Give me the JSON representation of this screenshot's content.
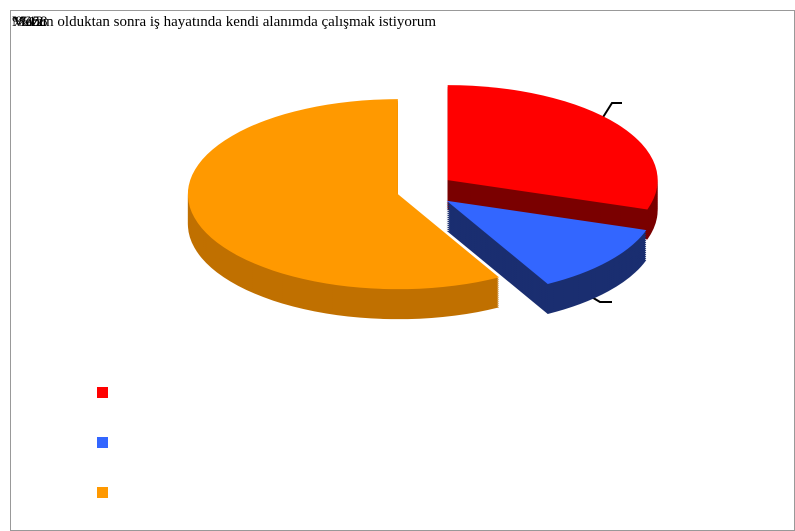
{
  "chart_data": {
    "type": "pie",
    "title": "Mezun olduktan sonra iş hayatında kendi alanımda çalışmak istiyorum",
    "values": [
      30,
      12,
      58
    ],
    "value_labels": [
      "%30",
      "%12",
      "%58"
    ],
    "colors": [
      "#ff0000",
      "#3366ff",
      "#ff9900"
    ],
    "side_colors": [
      "#7a0000",
      "#1a2e70",
      "#c07000"
    ]
  }
}
